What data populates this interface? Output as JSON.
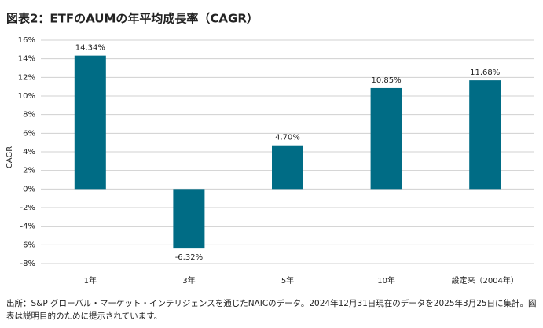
{
  "chart_data": {
    "type": "bar",
    "title": "図表2：ETFのAUMの年平均成長率（CAGR）",
    "y_label": "CAGR",
    "categories": [
      "1年",
      "3年",
      "5年",
      "10年",
      "設定来（2004年）"
    ],
    "values": [
      14.34,
      -6.32,
      4.7,
      10.85,
      11.68
    ],
    "value_labels": [
      "14.34%",
      "-6.32%",
      "4.70%",
      "10.85%",
      "11.68%"
    ],
    "color": "#006c85",
    "ylim": [
      -8,
      16
    ],
    "yticks": [
      {
        "value": 16,
        "label": "16%"
      },
      {
        "value": 14,
        "label": "14%"
      },
      {
        "value": 12,
        "label": "12%"
      },
      {
        "value": 10,
        "label": "10%"
      },
      {
        "value": 8,
        "label": "8%"
      },
      {
        "value": 6,
        "label": "6%"
      },
      {
        "value": 4,
        "label": "4%"
      },
      {
        "value": 2,
        "label": "2%"
      },
      {
        "value": 0,
        "label": "0%"
      },
      {
        "value": -2,
        "label": "-2%"
      },
      {
        "value": -4,
        "label": "-4%"
      },
      {
        "value": -6,
        "label": "-6%"
      },
      {
        "value": -8,
        "label": "-8%"
      }
    ],
    "grid": true,
    "note": "出所：S&P グローバル・マーケット・インテリジェンスを通じたNAICのデータ。2024年12月31日現在のデータを2025年3月25日に集計。図表は説明目的のために提示されています。"
  }
}
